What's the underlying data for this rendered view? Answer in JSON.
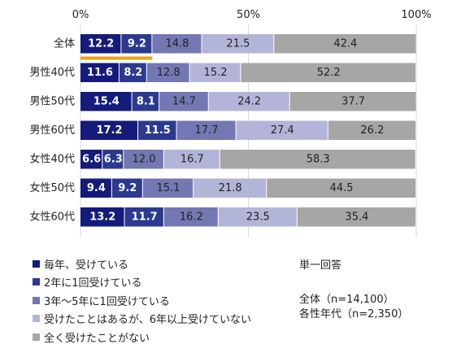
{
  "chart_data": {
    "type": "bar",
    "orientation": "horizontal",
    "stacked": true,
    "percent_axis": true,
    "x_ticks": [
      "0%",
      "50%",
      "100%"
    ],
    "categories": [
      "全体",
      "男性40代",
      "男性50代",
      "男性60代",
      "女性40代",
      "女性50代",
      "女性60代"
    ],
    "series": [
      {
        "name": "毎年、受けている",
        "color": "#141b7a",
        "values": [
          12.2,
          11.6,
          15.4,
          17.2,
          6.6,
          9.4,
          13.2
        ]
      },
      {
        "name": "2年に1回受けている",
        "color": "#2b3a8f",
        "values": [
          9.2,
          8.2,
          8.1,
          11.5,
          6.3,
          9.2,
          11.7
        ]
      },
      {
        "name": "3年～5年に1回受けている",
        "color": "#7378b2",
        "values": [
          14.8,
          12.8,
          14.7,
          17.7,
          12.0,
          15.1,
          16.2
        ]
      },
      {
        "name": "受けたことはあるが、6年以上受けていない",
        "color": "#b3b5d8",
        "values": [
          21.5,
          15.2,
          24.2,
          27.4,
          16.7,
          21.8,
          23.5
        ]
      },
      {
        "name": "全く受けたことがない",
        "color": "#a6a6a6",
        "values": [
          42.4,
          52.2,
          37.7,
          26.2,
          58.3,
          44.5,
          35.4
        ]
      }
    ],
    "label_colors": [
      "#ffffff",
      "#ffffff",
      "#222222",
      "#222222",
      "#222222"
    ],
    "highlight": {
      "category": "全体",
      "series_count": 2,
      "color": "#e8a317"
    },
    "grid": true,
    "legend_position": "bottom-left"
  },
  "notes": {
    "answer_type": "単一回答",
    "sample_total": "全体（n=14,100）",
    "sample_each": "各性年代（n=2,350）"
  }
}
